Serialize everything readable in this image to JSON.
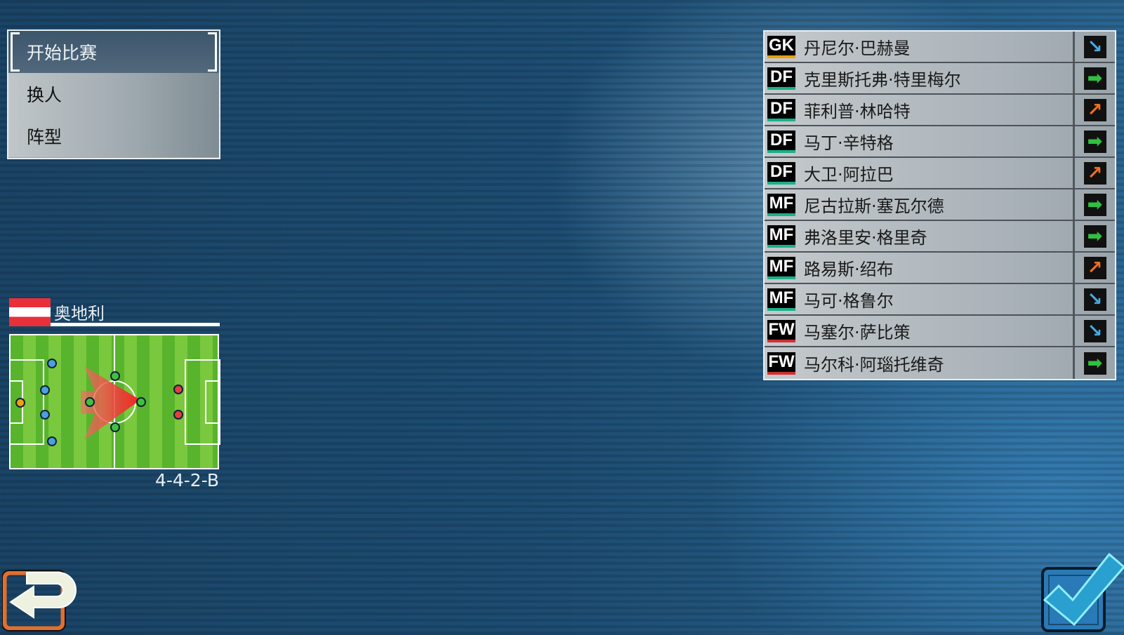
{
  "menu": {
    "items": [
      {
        "label": "开始比赛",
        "selected": true
      },
      {
        "label": "换人"
      },
      {
        "label": "阵型"
      }
    ]
  },
  "team": {
    "name": "奥地利",
    "flag_colors": [
      "#e8303a",
      "#ffffff",
      "#e8303a"
    ],
    "formation": "4-4-2-B"
  },
  "pitch_dots": {
    "gk_color": "#f0a010",
    "df_color": "#4aa0e0",
    "mf_color": "#40c040",
    "fw_color": "#e04040"
  },
  "players": [
    {
      "pos": "GK",
      "name": "丹尼尔·巴赫曼",
      "form": "down"
    },
    {
      "pos": "DF",
      "name": "克里斯托弗·特里梅尔",
      "form": "steady"
    },
    {
      "pos": "DF",
      "name": "菲利普·林哈特",
      "form": "up"
    },
    {
      "pos": "DF",
      "name": "马丁·辛特格",
      "form": "steady"
    },
    {
      "pos": "DF",
      "name": "大卫·阿拉巴",
      "form": "up"
    },
    {
      "pos": "MF",
      "name": "尼古拉斯·塞瓦尔德",
      "form": "steady"
    },
    {
      "pos": "MF",
      "name": "弗洛里安·格里奇",
      "form": "steady"
    },
    {
      "pos": "MF",
      "name": "路易斯·绍布",
      "form": "up"
    },
    {
      "pos": "MF",
      "name": "马可·格鲁尔",
      "form": "down"
    },
    {
      "pos": "FW",
      "name": "马塞尔·萨比策",
      "form": "down"
    },
    {
      "pos": "FW",
      "name": "马尔科·阿瑙托维奇",
      "form": "steady"
    }
  ],
  "position_colors": {
    "GK": "#e8a010",
    "DF": "#1bb08a",
    "MF": "#1bb08a",
    "FW": "#d03030"
  },
  "form_icons": {
    "down": {
      "icon": "arrow-down-right-icon",
      "color": "#4aa8e0"
    },
    "steady": {
      "icon": "arrow-right-icon",
      "color": "#30c040"
    },
    "up": {
      "icon": "arrow-up-right-icon",
      "color": "#f07020"
    }
  },
  "buttons": {
    "back": "back-icon",
    "confirm": "checkmark-icon"
  }
}
